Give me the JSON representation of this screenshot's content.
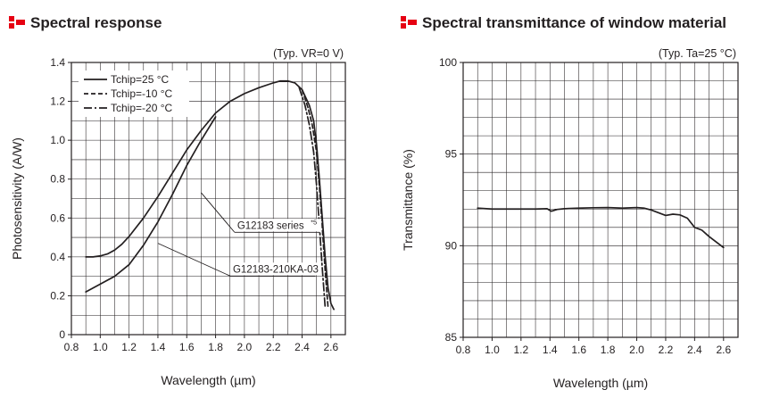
{
  "panels": {
    "left": {
      "title": "Spectral response"
    },
    "right": {
      "title": "Spectral transmittance of window material"
    }
  },
  "colors": {
    "accent": "#e60012",
    "grid": "#231f20",
    "ink": "#231f20"
  },
  "chart_data": [
    {
      "type": "line",
      "title": "Spectral response",
      "condition": "(Typ. VR=0 V)",
      "xlabel": "Wavelength (µm)",
      "ylabel": "Photosensitivity (A/W)",
      "xlim": [
        0.8,
        2.7
      ],
      "ylim": [
        0,
        1.4
      ],
      "xticks": [
        "0.8",
        "1.0",
        "1.2",
        "1.4",
        "1.6",
        "1.8",
        "2.0",
        "2.2",
        "2.4",
        "2.6"
      ],
      "xtick_values": [
        0.8,
        1.0,
        1.2,
        1.4,
        1.6,
        1.8,
        2.0,
        2.2,
        2.4,
        2.6
      ],
      "yticks": [
        "0",
        "0.2",
        "0.4",
        "0.6",
        "0.8",
        "1.0",
        "1.2",
        "1.4"
      ],
      "ytick_values": [
        0,
        0.2,
        0.4,
        0.6,
        0.8,
        1.0,
        1.2,
        1.4
      ],
      "grid": true,
      "legend_position": "top-left",
      "series": [
        {
          "name": "Tchip=25 °C",
          "style": "solid",
          "x": [
            0.9,
            0.95,
            1.0,
            1.05,
            1.1,
            1.15,
            1.2,
            1.3,
            1.4,
            1.5,
            1.6,
            1.7,
            1.8,
            1.9,
            2.0,
            2.1,
            2.2,
            2.25,
            2.3,
            2.35,
            2.4,
            2.45,
            2.48,
            2.5,
            2.52,
            2.54,
            2.56,
            2.58,
            2.6,
            2.62
          ],
          "y": [
            0.4,
            0.4,
            0.405,
            0.415,
            0.435,
            0.465,
            0.505,
            0.6,
            0.71,
            0.83,
            0.95,
            1.05,
            1.14,
            1.2,
            1.24,
            1.27,
            1.295,
            1.305,
            1.305,
            1.295,
            1.26,
            1.18,
            1.1,
            0.98,
            0.8,
            0.6,
            0.4,
            0.24,
            0.16,
            0.13
          ]
        },
        {
          "name": "Tchip=-10 °C",
          "style": "dashed",
          "x": [
            2.4,
            2.44,
            2.47,
            2.5,
            2.52,
            2.54,
            2.56,
            2.58
          ],
          "y": [
            1.26,
            1.17,
            1.08,
            0.94,
            0.76,
            0.55,
            0.33,
            0.14
          ]
        },
        {
          "name": "Tchip=-20 °C",
          "style": "dashdot",
          "x": [
            2.38,
            2.42,
            2.45,
            2.48,
            2.5,
            2.52,
            2.54,
            2.56
          ],
          "y": [
            1.27,
            1.18,
            1.08,
            0.94,
            0.77,
            0.56,
            0.34,
            0.14
          ]
        },
        {
          "name": "",
          "style": "solid",
          "x": [
            0.9,
            1.0,
            1.1,
            1.2,
            1.3,
            1.4,
            1.5,
            1.6,
            1.7,
            1.75,
            1.8
          ],
          "y": [
            0.22,
            0.26,
            0.3,
            0.36,
            0.46,
            0.58,
            0.72,
            0.87,
            1.0,
            1.06,
            1.12
          ]
        }
      ],
      "annotations": [
        {
          "text": "G12183 series",
          "superscript": "*5",
          "x": 1.95,
          "y": 0.545,
          "points_to": [
            1.7,
            0.73
          ]
        },
        {
          "text": "G12183-210KA-03",
          "x": 1.92,
          "y": 0.32,
          "points_to": [
            1.4,
            0.47
          ]
        }
      ]
    },
    {
      "type": "line",
      "title": "Spectral transmittance of window material",
      "condition": "(Typ. Ta=25 °C)",
      "xlabel": "Wavelength (µm)",
      "ylabel": "Transmittance (%)",
      "xlim": [
        0.8,
        2.7
      ],
      "ylim": [
        85,
        100
      ],
      "xticks": [
        "0.8",
        "1.0",
        "1.2",
        "1.4",
        "1.6",
        "1.8",
        "2.0",
        "2.2",
        "2.4",
        "2.6"
      ],
      "xtick_values": [
        0.8,
        1.0,
        1.2,
        1.4,
        1.6,
        1.8,
        2.0,
        2.2,
        2.4,
        2.6
      ],
      "yticks": [
        "85",
        "90",
        "95",
        "100"
      ],
      "ytick_values": [
        85,
        90,
        95,
        100
      ],
      "grid": true,
      "series": [
        {
          "name": "",
          "style": "solid",
          "x": [
            0.9,
            1.0,
            1.1,
            1.2,
            1.3,
            1.38,
            1.41,
            1.45,
            1.5,
            1.6,
            1.7,
            1.8,
            1.9,
            2.0,
            2.05,
            2.1,
            2.2,
            2.25,
            2.3,
            2.35,
            2.4,
            2.45,
            2.5,
            2.6
          ],
          "y": [
            92.05,
            92.0,
            92.0,
            92.0,
            92.0,
            92.02,
            91.88,
            91.98,
            92.02,
            92.05,
            92.07,
            92.08,
            92.05,
            92.08,
            92.05,
            91.95,
            91.65,
            91.72,
            91.68,
            91.5,
            91.0,
            90.85,
            90.5,
            89.9
          ]
        }
      ]
    }
  ]
}
